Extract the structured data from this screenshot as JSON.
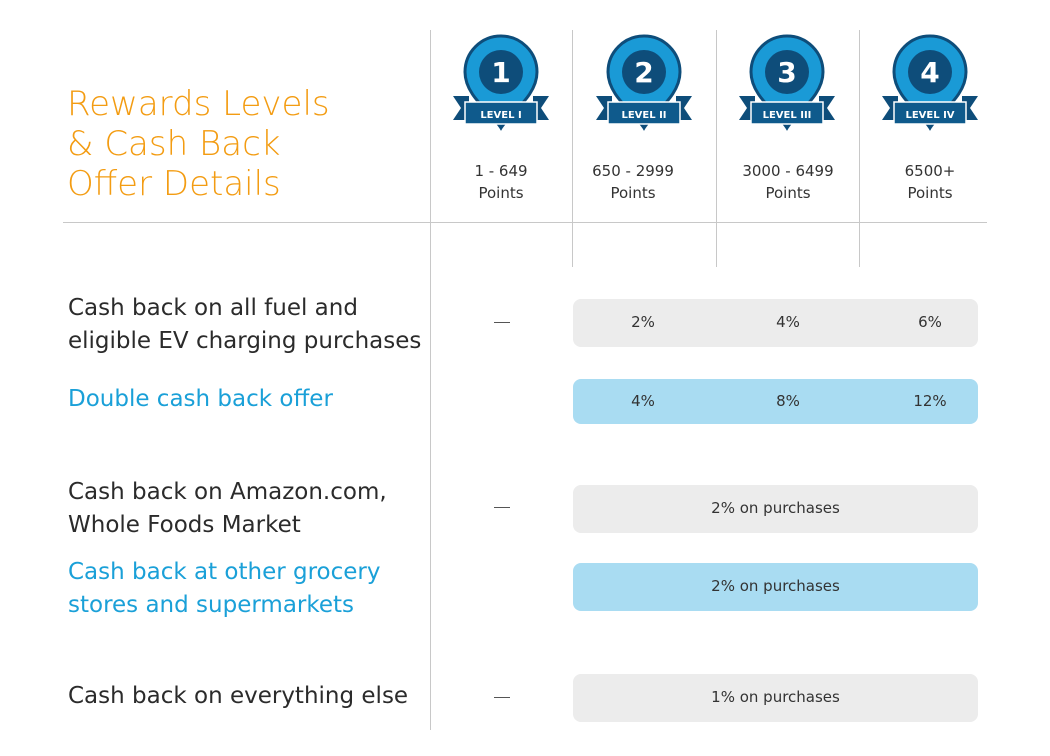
{
  "title": {
    "line1": "Rewards Levels",
    "line2": "& Cash Back",
    "line3": "Offer Details"
  },
  "levels": [
    {
      "number": "1",
      "label": "LEVEL I",
      "points_line1": "1 - 649",
      "points_line2": "Points"
    },
    {
      "number": "2",
      "label": "LEVEL II",
      "points_line1": "650 - 2999",
      "points_line2": "Points"
    },
    {
      "number": "3",
      "label": "LEVEL III",
      "points_line1": "3000 - 6499",
      "points_line2": "Points"
    },
    {
      "number": "4",
      "label": "LEVEL IV",
      "points_line1": "6500+",
      "points_line2": "Points"
    }
  ],
  "rows": {
    "fuel": {
      "line1": "Cash back on all fuel and",
      "line2": "eligible EV charging purchases",
      "level1": "—",
      "values": [
        "2%",
        "4%",
        "6%"
      ]
    },
    "double": {
      "label": "Double cash back offer",
      "values": [
        "4%",
        "8%",
        "12%"
      ]
    },
    "amazon": {
      "line1": "Cash back on Amazon.com,",
      "line2": "Whole Foods Market",
      "level1": "—",
      "value": "2% on purchases"
    },
    "grocery": {
      "line1": "Cash back at other grocery",
      "line2": "stores and supermarkets",
      "value": "2% on purchases"
    },
    "everything": {
      "label": "Cash back on everything else",
      "level1": "—",
      "value": "1% on purchases"
    }
  },
  "colors": {
    "title": "#f39c12",
    "badge_blue": "#1a9ad6",
    "badge_dark": "#0e4d7a",
    "ribbon": "#0f5a8c",
    "highlight_text": "#1aa0d8",
    "bar_gray": "#ececec",
    "bar_blue": "#a9dcf2"
  },
  "icons": [
    "level-badge-icon"
  ]
}
